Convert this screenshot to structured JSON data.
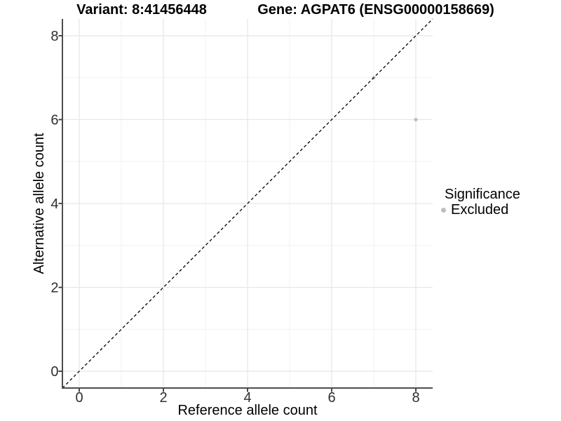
{
  "chart_data": {
    "type": "scatter",
    "titles": {
      "left": "Variant: 8:41456448",
      "right": "Gene: AGPAT6 (ENSG00000158669)"
    },
    "xlabel": "Reference allele count",
    "ylabel": "Alternative allele count",
    "xlim": [
      -0.4,
      8.4
    ],
    "ylim": [
      -0.4,
      8.4
    ],
    "x_ticks": [
      0,
      2,
      4,
      6,
      8
    ],
    "y_ticks": [
      0,
      2,
      4,
      6,
      8
    ],
    "x_minor_ticks": [
      1,
      3,
      5,
      7
    ],
    "y_minor_ticks": [
      1,
      3,
      5,
      7
    ],
    "grid": "major-and-minor",
    "points": [
      {
        "x": 7,
        "y": 7,
        "series": "Excluded"
      },
      {
        "x": 8,
        "y": 6,
        "series": "Excluded"
      }
    ],
    "reference_line": {
      "type": "identity-y-equals-x",
      "style": "dashed",
      "color": "#000000"
    },
    "legend": {
      "title": "Significance",
      "position": "right",
      "entries": [
        {
          "label": "Excluded",
          "color": "#bebebe"
        }
      ]
    },
    "colors": {
      "background": "#ffffff",
      "major_grid": "#e6e6e6",
      "minor_grid": "#f2f2f2",
      "axis_line": "#4d4d4d",
      "tick_mark": "#333333",
      "tick_label": "#303030",
      "point": "#bebebe"
    }
  }
}
